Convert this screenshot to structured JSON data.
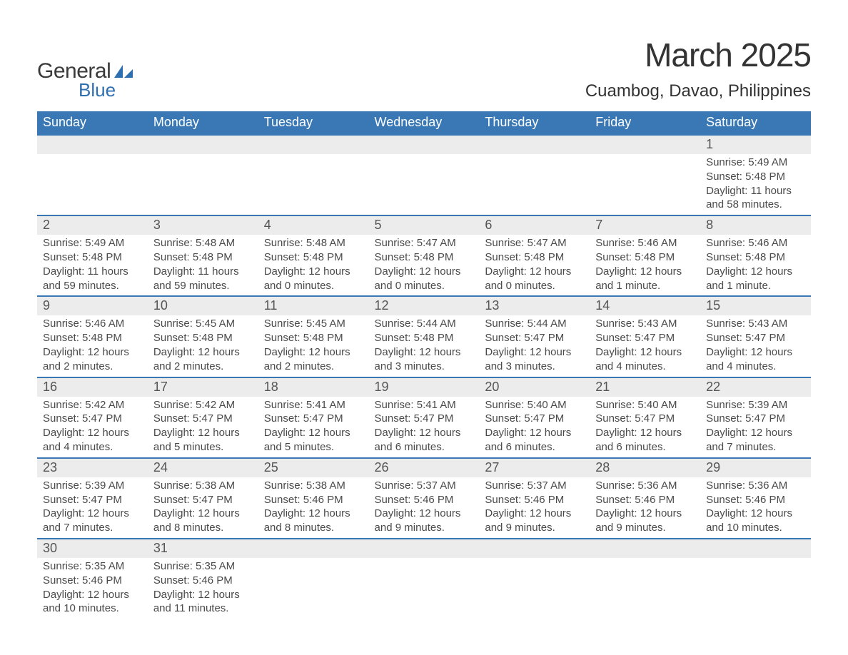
{
  "logo": {
    "text_top": "General",
    "text_bottom": "Blue",
    "icon_color": "#2e6fb0"
  },
  "header": {
    "month_title": "March 2025",
    "location": "Cuambog, Davao, Philippines"
  },
  "styling": {
    "header_bg": "#3a78b5",
    "header_text_color": "#ffffff",
    "daynum_bg": "#ececec",
    "border_color": "#3a78b5",
    "body_text_color": "#4a4a4a",
    "title_color": "#333333",
    "page_bg": "#ffffff",
    "month_title_fontsize": 46,
    "location_fontsize": 24,
    "day_header_fontsize": 18,
    "cell_fontsize": 15
  },
  "day_headers": [
    "Sunday",
    "Monday",
    "Tuesday",
    "Wednesday",
    "Thursday",
    "Friday",
    "Saturday"
  ],
  "weeks": [
    {
      "days": [
        null,
        null,
        null,
        null,
        null,
        null,
        {
          "n": "1",
          "sunrise": "Sunrise: 5:49 AM",
          "sunset": "Sunset: 5:48 PM",
          "day1": "Daylight: 11 hours",
          "day2": "and 58 minutes."
        }
      ]
    },
    {
      "days": [
        {
          "n": "2",
          "sunrise": "Sunrise: 5:49 AM",
          "sunset": "Sunset: 5:48 PM",
          "day1": "Daylight: 11 hours",
          "day2": "and 59 minutes."
        },
        {
          "n": "3",
          "sunrise": "Sunrise: 5:48 AM",
          "sunset": "Sunset: 5:48 PM",
          "day1": "Daylight: 11 hours",
          "day2": "and 59 minutes."
        },
        {
          "n": "4",
          "sunrise": "Sunrise: 5:48 AM",
          "sunset": "Sunset: 5:48 PM",
          "day1": "Daylight: 12 hours",
          "day2": "and 0 minutes."
        },
        {
          "n": "5",
          "sunrise": "Sunrise: 5:47 AM",
          "sunset": "Sunset: 5:48 PM",
          "day1": "Daylight: 12 hours",
          "day2": "and 0 minutes."
        },
        {
          "n": "6",
          "sunrise": "Sunrise: 5:47 AM",
          "sunset": "Sunset: 5:48 PM",
          "day1": "Daylight: 12 hours",
          "day2": "and 0 minutes."
        },
        {
          "n": "7",
          "sunrise": "Sunrise: 5:46 AM",
          "sunset": "Sunset: 5:48 PM",
          "day1": "Daylight: 12 hours",
          "day2": "and 1 minute."
        },
        {
          "n": "8",
          "sunrise": "Sunrise: 5:46 AM",
          "sunset": "Sunset: 5:48 PM",
          "day1": "Daylight: 12 hours",
          "day2": "and 1 minute."
        }
      ]
    },
    {
      "days": [
        {
          "n": "9",
          "sunrise": "Sunrise: 5:46 AM",
          "sunset": "Sunset: 5:48 PM",
          "day1": "Daylight: 12 hours",
          "day2": "and 2 minutes."
        },
        {
          "n": "10",
          "sunrise": "Sunrise: 5:45 AM",
          "sunset": "Sunset: 5:48 PM",
          "day1": "Daylight: 12 hours",
          "day2": "and 2 minutes."
        },
        {
          "n": "11",
          "sunrise": "Sunrise: 5:45 AM",
          "sunset": "Sunset: 5:48 PM",
          "day1": "Daylight: 12 hours",
          "day2": "and 2 minutes."
        },
        {
          "n": "12",
          "sunrise": "Sunrise: 5:44 AM",
          "sunset": "Sunset: 5:48 PM",
          "day1": "Daylight: 12 hours",
          "day2": "and 3 minutes."
        },
        {
          "n": "13",
          "sunrise": "Sunrise: 5:44 AM",
          "sunset": "Sunset: 5:47 PM",
          "day1": "Daylight: 12 hours",
          "day2": "and 3 minutes."
        },
        {
          "n": "14",
          "sunrise": "Sunrise: 5:43 AM",
          "sunset": "Sunset: 5:47 PM",
          "day1": "Daylight: 12 hours",
          "day2": "and 4 minutes."
        },
        {
          "n": "15",
          "sunrise": "Sunrise: 5:43 AM",
          "sunset": "Sunset: 5:47 PM",
          "day1": "Daylight: 12 hours",
          "day2": "and 4 minutes."
        }
      ]
    },
    {
      "days": [
        {
          "n": "16",
          "sunrise": "Sunrise: 5:42 AM",
          "sunset": "Sunset: 5:47 PM",
          "day1": "Daylight: 12 hours",
          "day2": "and 4 minutes."
        },
        {
          "n": "17",
          "sunrise": "Sunrise: 5:42 AM",
          "sunset": "Sunset: 5:47 PM",
          "day1": "Daylight: 12 hours",
          "day2": "and 5 minutes."
        },
        {
          "n": "18",
          "sunrise": "Sunrise: 5:41 AM",
          "sunset": "Sunset: 5:47 PM",
          "day1": "Daylight: 12 hours",
          "day2": "and 5 minutes."
        },
        {
          "n": "19",
          "sunrise": "Sunrise: 5:41 AM",
          "sunset": "Sunset: 5:47 PM",
          "day1": "Daylight: 12 hours",
          "day2": "and 6 minutes."
        },
        {
          "n": "20",
          "sunrise": "Sunrise: 5:40 AM",
          "sunset": "Sunset: 5:47 PM",
          "day1": "Daylight: 12 hours",
          "day2": "and 6 minutes."
        },
        {
          "n": "21",
          "sunrise": "Sunrise: 5:40 AM",
          "sunset": "Sunset: 5:47 PM",
          "day1": "Daylight: 12 hours",
          "day2": "and 6 minutes."
        },
        {
          "n": "22",
          "sunrise": "Sunrise: 5:39 AM",
          "sunset": "Sunset: 5:47 PM",
          "day1": "Daylight: 12 hours",
          "day2": "and 7 minutes."
        }
      ]
    },
    {
      "days": [
        {
          "n": "23",
          "sunrise": "Sunrise: 5:39 AM",
          "sunset": "Sunset: 5:47 PM",
          "day1": "Daylight: 12 hours",
          "day2": "and 7 minutes."
        },
        {
          "n": "24",
          "sunrise": "Sunrise: 5:38 AM",
          "sunset": "Sunset: 5:47 PM",
          "day1": "Daylight: 12 hours",
          "day2": "and 8 minutes."
        },
        {
          "n": "25",
          "sunrise": "Sunrise: 5:38 AM",
          "sunset": "Sunset: 5:46 PM",
          "day1": "Daylight: 12 hours",
          "day2": "and 8 minutes."
        },
        {
          "n": "26",
          "sunrise": "Sunrise: 5:37 AM",
          "sunset": "Sunset: 5:46 PM",
          "day1": "Daylight: 12 hours",
          "day2": "and 9 minutes."
        },
        {
          "n": "27",
          "sunrise": "Sunrise: 5:37 AM",
          "sunset": "Sunset: 5:46 PM",
          "day1": "Daylight: 12 hours",
          "day2": "and 9 minutes."
        },
        {
          "n": "28",
          "sunrise": "Sunrise: 5:36 AM",
          "sunset": "Sunset: 5:46 PM",
          "day1": "Daylight: 12 hours",
          "day2": "and 9 minutes."
        },
        {
          "n": "29",
          "sunrise": "Sunrise: 5:36 AM",
          "sunset": "Sunset: 5:46 PM",
          "day1": "Daylight: 12 hours",
          "day2": "and 10 minutes."
        }
      ]
    },
    {
      "days": [
        {
          "n": "30",
          "sunrise": "Sunrise: 5:35 AM",
          "sunset": "Sunset: 5:46 PM",
          "day1": "Daylight: 12 hours",
          "day2": "and 10 minutes."
        },
        {
          "n": "31",
          "sunrise": "Sunrise: 5:35 AM",
          "sunset": "Sunset: 5:46 PM",
          "day1": "Daylight: 12 hours",
          "day2": "and 11 minutes."
        },
        null,
        null,
        null,
        null,
        null
      ]
    }
  ]
}
